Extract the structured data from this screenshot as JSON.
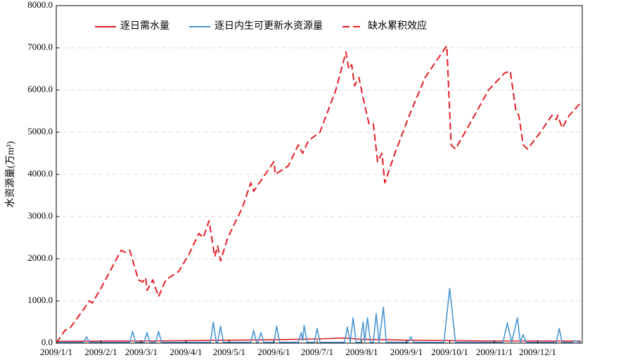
{
  "chart_data": {
    "type": "line",
    "y_label": "水资源量(万m³)",
    "xlim": [
      "2009/1/1",
      "2009/12/31"
    ],
    "xticks": [
      "2009/1/1",
      "2009/2/1",
      "2009/3/1",
      "2009/4/1",
      "2009/5/1",
      "2009/6/1",
      "2009/7/1",
      "2009/8/1",
      "2009/9/1",
      "2009/10/1",
      "2009/11/1",
      "2009/12/1"
    ],
    "ylim": [
      0,
      8000
    ],
    "yticks": [
      {
        "value": 0,
        "label": "0.0"
      },
      {
        "value": 1000,
        "label": "1000.0"
      },
      {
        "value": 2000,
        "label": "2000.0"
      },
      {
        "value": 3000,
        "label": "3000.0"
      },
      {
        "value": 4000,
        "label": "4000.0"
      },
      {
        "value": 5000,
        "label": "5000.0"
      },
      {
        "value": 6000,
        "label": "6000.0"
      },
      {
        "value": 7000,
        "label": "7000.0"
      },
      {
        "value": 8000,
        "label": "8000.0"
      }
    ],
    "grid": true,
    "legend": "top-left",
    "series": [
      {
        "name": "逐日需水量",
        "color": "#e41f26",
        "dashed": false,
        "x": [
          "2009/1/1",
          "2009/2/1",
          "2009/3/1",
          "2009/4/1",
          "2009/5/1",
          "2009/6/1",
          "2009/7/1",
          "2009/7/20",
          "2009/8/1",
          "2009/9/1",
          "2009/10/1",
          "2009/11/1",
          "2009/12/1",
          "2009/12/31"
        ],
        "values": [
          40,
          50,
          50,
          60,
          70,
          80,
          100,
          120,
          90,
          70,
          60,
          50,
          50,
          50
        ]
      },
      {
        "name": "逐日内生可更新水资源量",
        "color": "#4a96d2",
        "dashed": false,
        "x": [
          "2009/1/1",
          "2009/1/20",
          "2009/1/22",
          "2009/1/24",
          "2009/2/21",
          "2009/2/23",
          "2009/2/25",
          "2009/3/3",
          "2009/3/5",
          "2009/3/7",
          "2009/3/11",
          "2009/3/13",
          "2009/3/15",
          "2009/4/18",
          "2009/4/20",
          "2009/4/22",
          "2009/4/23",
          "2009/4/25",
          "2009/4/27",
          "2009/5/16",
          "2009/5/18",
          "2009/5/20",
          "2009/5/21",
          "2009/5/23",
          "2009/5/25",
          "2009/6/1",
          "2009/6/3",
          "2009/6/5",
          "2009/6/18",
          "2009/6/20",
          "2009/6/21",
          "2009/6/22",
          "2009/6/24",
          "2009/6/29",
          "2009/7/1",
          "2009/7/3",
          "2009/7/20",
          "2009/7/22",
          "2009/7/24",
          "2009/7/26",
          "2009/7/28",
          "2009/7/31",
          "2009/8/2",
          "2009/8/3",
          "2009/8/5",
          "2009/8/7",
          "2009/8/9",
          "2009/8/11",
          "2009/8/13",
          "2009/8/16",
          "2009/8/18",
          "2009/9/2",
          "2009/9/4",
          "2009/9/6",
          "2009/9/27",
          "2009/10/1",
          "2009/10/5",
          "2009/11/7",
          "2009/11/10",
          "2009/11/13",
          "2009/11/17",
          "2009/11/19",
          "2009/11/21",
          "2009/11/23",
          "2009/12/14",
          "2009/12/16",
          "2009/12/18",
          "2009/12/25",
          "2009/12/27",
          "2009/12/31"
        ],
        "values": [
          20,
          20,
          150,
          20,
          20,
          280,
          20,
          20,
          250,
          20,
          20,
          280,
          20,
          20,
          500,
          20,
          20,
          400,
          20,
          20,
          300,
          20,
          20,
          250,
          20,
          20,
          400,
          20,
          20,
          250,
          60,
          420,
          20,
          20,
          350,
          20,
          20,
          380,
          20,
          600,
          20,
          20,
          500,
          30,
          600,
          20,
          20,
          700,
          20,
          850,
          20,
          20,
          150,
          20,
          20,
          1300,
          20,
          20,
          480,
          20,
          600,
          20,
          200,
          20,
          20,
          350,
          20,
          20,
          50,
          20
        ]
      },
      {
        "name": "缺水累积效应",
        "color": "#e41f26",
        "dashed": true,
        "x": [
          "2009/1/1",
          "2009/1/7",
          "2009/1/11",
          "2009/1/20",
          "2009/1/24",
          "2009/1/26",
          "2009/2/1",
          "2009/2/15",
          "2009/2/18",
          "2009/2/21",
          "2009/2/27",
          "2009/3/2",
          "2009/3/4",
          "2009/3/5",
          "2009/3/9",
          "2009/3/13",
          "2009/3/18",
          "2009/3/27",
          "2009/4/3",
          "2009/4/10",
          "2009/4/13",
          "2009/4/17",
          "2009/4/21",
          "2009/4/23",
          "2009/4/25",
          "2009/4/30",
          "2009/5/10",
          "2009/5/16",
          "2009/5/18",
          "2009/5/22",
          "2009/6/1",
          "2009/6/2",
          "2009/6/11",
          "2009/6/18",
          "2009/6/21",
          "2009/6/25",
          "2009/7/3",
          "2009/7/14",
          "2009/7/21",
          "2009/7/23",
          "2009/7/25",
          "2009/7/27",
          "2009/7/30",
          "2009/8/2",
          "2009/8/6",
          "2009/8/9",
          "2009/8/12",
          "2009/8/15",
          "2009/8/17",
          "2009/8/24",
          "2009/9/3",
          "2009/9/14",
          "2009/9/29",
          "2009/10/2",
          "2009/10/5",
          "2009/10/15",
          "2009/10/28",
          "2009/11/8",
          "2009/11/12",
          "2009/11/16",
          "2009/11/18",
          "2009/11/21",
          "2009/11/24",
          "2009/12/3",
          "2009/12/11",
          "2009/12/14",
          "2009/12/15",
          "2009/12/18",
          "2009/12/23",
          "2009/12/31"
        ],
        "values": [
          0,
          300,
          380,
          800,
          1000,
          950,
          1300,
          2200,
          2150,
          2200,
          1500,
          1450,
          1550,
          1250,
          1500,
          1100,
          1500,
          1700,
          2100,
          2600,
          2500,
          2900,
          2050,
          2300,
          1950,
          2500,
          3200,
          3800,
          3600,
          3800,
          4300,
          4000,
          4200,
          4700,
          4500,
          4800,
          5000,
          6000,
          6900,
          6500,
          6600,
          6100,
          6300,
          5800,
          5200,
          5200,
          4300,
          4500,
          3800,
          4500,
          5400,
          6300,
          7050,
          4700,
          4600,
          5200,
          6000,
          6400,
          6450,
          5500,
          5400,
          4700,
          4600,
          5000,
          5400,
          5300,
          5400,
          5100,
          5400,
          5700
        ]
      }
    ]
  }
}
